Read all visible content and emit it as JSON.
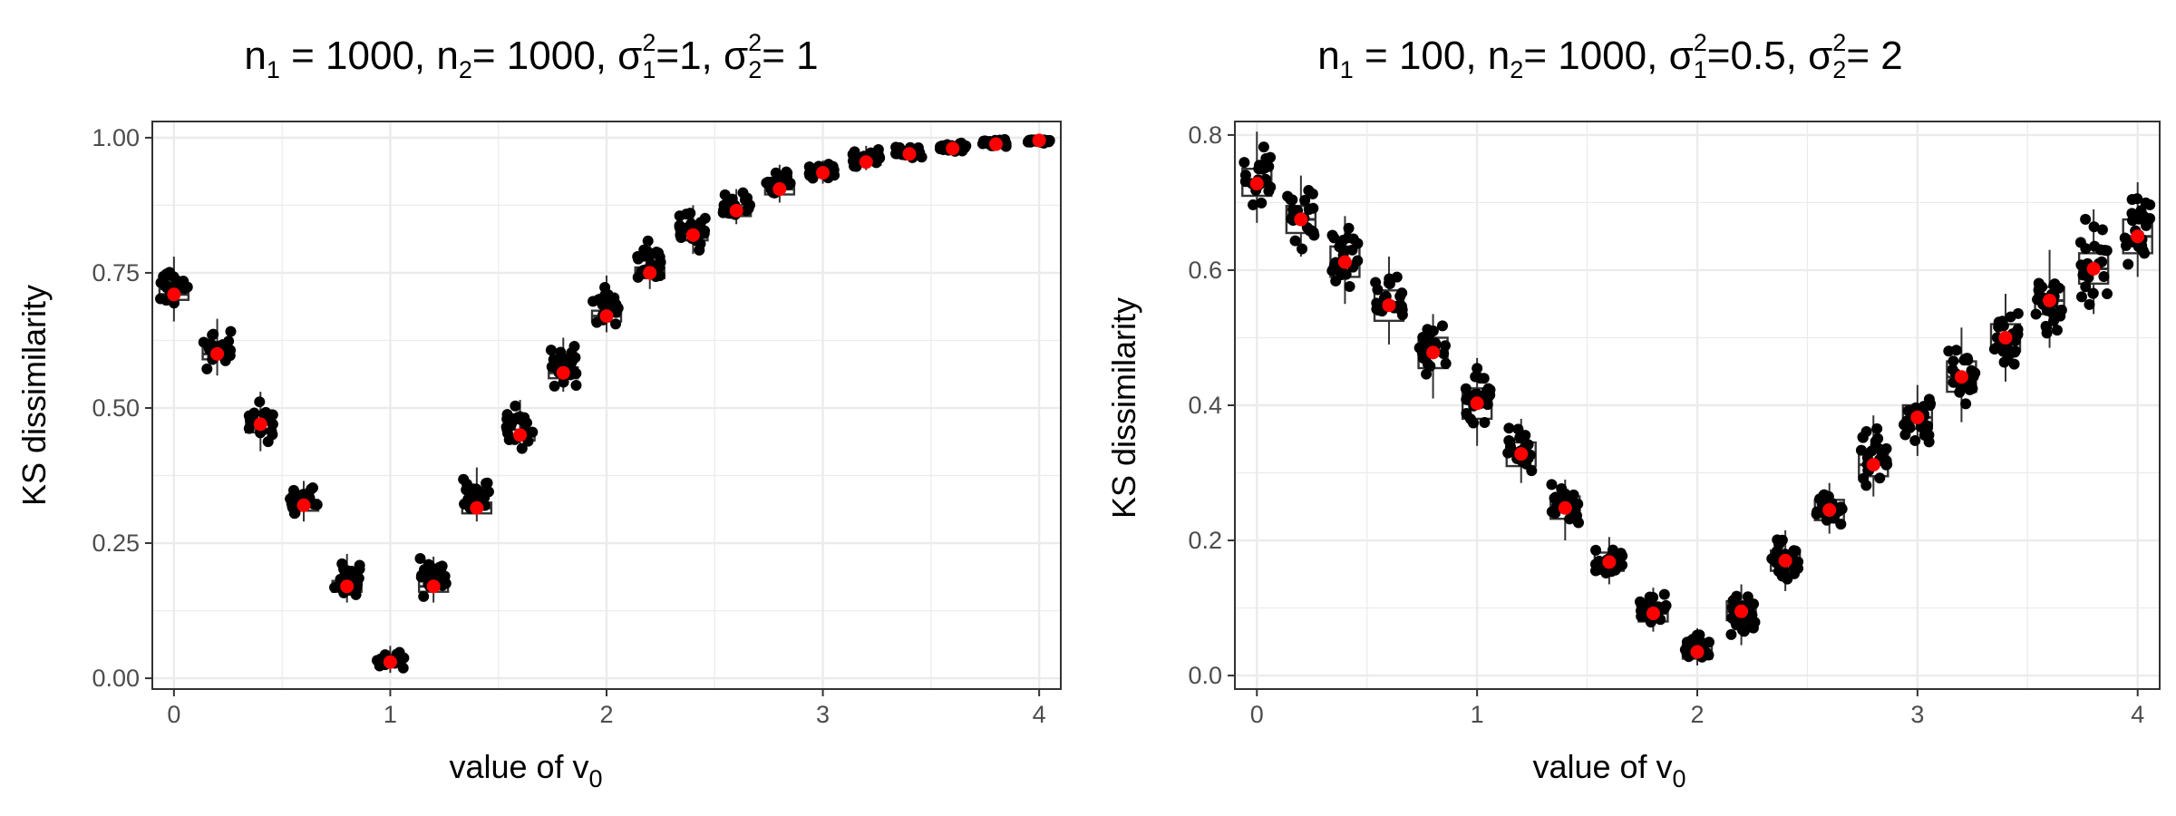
{
  "colors": {
    "point": "#000000",
    "mean": "#ff0000",
    "box": "#333333",
    "grid": "#ebebeb",
    "frame": "#333333"
  },
  "chart_data": [
    {
      "type": "boxplot",
      "title": {
        "p1": "n",
        "s1": "1",
        "p2": " = 1000, n",
        "s2": "2",
        "p3": "= 1000, σ",
        "x1sup": "2",
        "x1sub": "1",
        "p4": "=1, σ",
        "x2sup": "2",
        "x2sub": "2",
        "p5": "= 1"
      },
      "xlabel": {
        "main": "value of v",
        "sub": "0"
      },
      "ylabel": "KS dissimilarity",
      "xlim": [
        -0.1,
        4.1
      ],
      "ylim": [
        -0.02,
        1.03
      ],
      "xticks": [
        0,
        1,
        2,
        3,
        4
      ],
      "xticklabels": [
        "0",
        "1",
        "2",
        "3",
        "4"
      ],
      "yticks": [
        0,
        0.25,
        0.5,
        0.75,
        1
      ],
      "yticklabels": [
        "0.00",
        "0.25",
        "0.50",
        "0.75",
        "1.00"
      ],
      "grid": true,
      "x": [
        0,
        0.2,
        0.4,
        0.6,
        0.8,
        1.0,
        1.2,
        1.4,
        1.6,
        1.8,
        2.0,
        2.2,
        2.4,
        2.6,
        2.8,
        3.0,
        3.2,
        3.4,
        3.6,
        3.8,
        4.0
      ],
      "mean": [
        0.71,
        0.6,
        0.47,
        0.32,
        0.17,
        0.03,
        0.17,
        0.315,
        0.45,
        0.565,
        0.67,
        0.75,
        0.82,
        0.865,
        0.905,
        0.935,
        0.955,
        0.97,
        0.98,
        0.988,
        0.995
      ],
      "q1": [
        0.7,
        0.59,
        0.455,
        0.31,
        0.16,
        0.025,
        0.16,
        0.305,
        0.44,
        0.555,
        0.66,
        0.74,
        0.81,
        0.855,
        0.895,
        0.93,
        0.95,
        0.965,
        0.976,
        0.985,
        0.992
      ],
      "q3": [
        0.72,
        0.61,
        0.48,
        0.33,
        0.18,
        0.035,
        0.18,
        0.325,
        0.46,
        0.575,
        0.68,
        0.76,
        0.83,
        0.875,
        0.915,
        0.94,
        0.96,
        0.975,
        0.984,
        0.99,
        0.997
      ],
      "pmin": [
        0.66,
        0.56,
        0.42,
        0.29,
        0.14,
        0.01,
        0.14,
        0.29,
        0.42,
        0.53,
        0.64,
        0.72,
        0.785,
        0.84,
        0.88,
        0.915,
        0.94,
        0.958,
        0.97,
        0.98,
        0.988
      ],
      "pmax": [
        0.78,
        0.665,
        0.53,
        0.365,
        0.23,
        0.06,
        0.225,
        0.39,
        0.515,
        0.63,
        0.745,
        0.815,
        0.875,
        0.905,
        0.95,
        0.958,
        0.985,
        0.99,
        0.995,
        1.0,
        1.0
      ]
    },
    {
      "type": "boxplot",
      "title": {
        "p1": "n",
        "s1": "1",
        "p2": " = 100, n",
        "s2": "2",
        "p3": "= 1000, σ",
        "x1sup": "2",
        "x1sub": "1",
        "p4": "=0.5, σ",
        "x2sup": "2",
        "x2sub": "2",
        "p5": "= 2"
      },
      "xlabel": {
        "main": "value of v",
        "sub": "0"
      },
      "ylabel": "KS dissimilarity",
      "xlim": [
        -0.1,
        4.1
      ],
      "ylim": [
        -0.02,
        0.82
      ],
      "xticks": [
        0,
        1,
        2,
        3,
        4
      ],
      "xticklabels": [
        "0",
        "1",
        "2",
        "3",
        "4"
      ],
      "yticks": [
        0,
        0.2,
        0.4,
        0.6,
        0.8
      ],
      "yticklabels": [
        "0.0",
        "0.2",
        "0.4",
        "0.6",
        "0.8"
      ],
      "grid": true,
      "x": [
        0,
        0.2,
        0.4,
        0.6,
        0.8,
        1.0,
        1.2,
        1.4,
        1.6,
        1.8,
        2.0,
        2.2,
        2.4,
        2.6,
        2.8,
        3.0,
        3.2,
        3.4,
        3.6,
        3.8,
        4.0
      ],
      "mean": [
        0.728,
        0.675,
        0.612,
        0.548,
        0.478,
        0.403,
        0.328,
        0.248,
        0.168,
        0.092,
        0.035,
        0.095,
        0.17,
        0.245,
        0.312,
        0.382,
        0.442,
        0.5,
        0.555,
        0.602,
        0.65
      ],
      "q1": [
        0.71,
        0.655,
        0.59,
        0.525,
        0.455,
        0.38,
        0.31,
        0.232,
        0.155,
        0.08,
        0.025,
        0.082,
        0.155,
        0.23,
        0.295,
        0.365,
        0.42,
        0.48,
        0.535,
        0.58,
        0.625
      ],
      "q3": [
        0.75,
        0.695,
        0.635,
        0.57,
        0.5,
        0.425,
        0.345,
        0.265,
        0.182,
        0.102,
        0.045,
        0.11,
        0.185,
        0.26,
        0.33,
        0.4,
        0.465,
        0.52,
        0.575,
        0.625,
        0.675
      ],
      "pmin": [
        0.67,
        0.62,
        0.55,
        0.49,
        0.41,
        0.34,
        0.285,
        0.2,
        0.135,
        0.065,
        0.015,
        0.045,
        0.125,
        0.21,
        0.265,
        0.325,
        0.375,
        0.435,
        0.485,
        0.535,
        0.59
      ],
      "pmax": [
        0.805,
        0.74,
        0.68,
        0.62,
        0.535,
        0.47,
        0.38,
        0.29,
        0.205,
        0.13,
        0.07,
        0.135,
        0.215,
        0.285,
        0.385,
        0.43,
        0.515,
        0.565,
        0.63,
        0.69,
        0.73
      ]
    }
  ]
}
